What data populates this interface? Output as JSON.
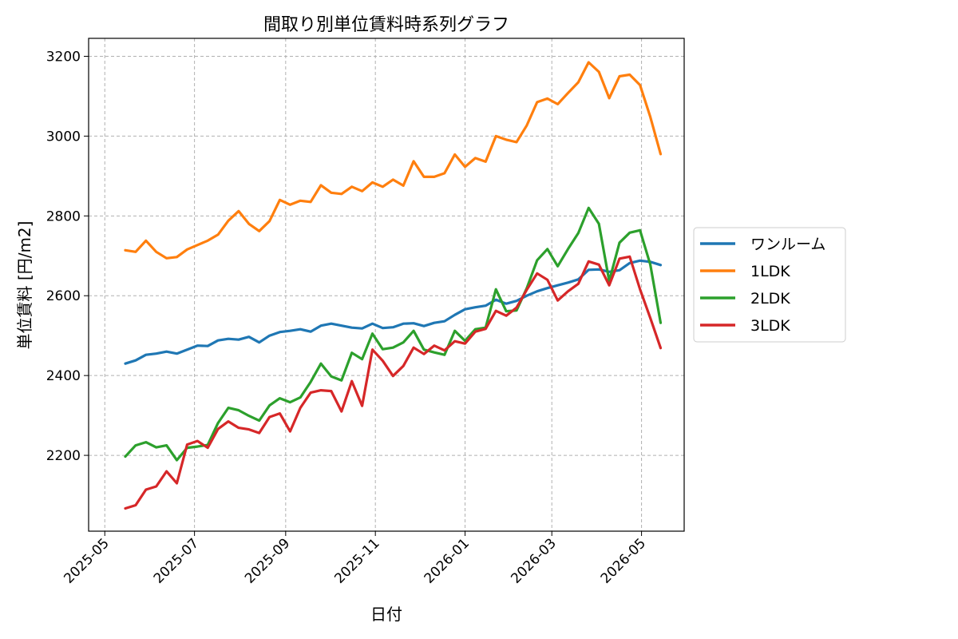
{
  "chart_data": {
    "type": "line",
    "title": "間取り別単位賃料時系列グラフ",
    "xlabel": "日付",
    "ylabel": "単位賃料 [円/m2]",
    "x_tick_labels": [
      "2025-05",
      "2025-07",
      "2025-09",
      "2025-11",
      "2026-01",
      "2026-03",
      "2026-05"
    ],
    "x_tick_dates": [
      "2025-05-01",
      "2025-07-01",
      "2025-09-01",
      "2025-11-01",
      "2026-01-01",
      "2026-03-01",
      "2026-05-01"
    ],
    "x_range": [
      "2025-04-20",
      "2026-05-30"
    ],
    "y_ticks": [
      2200,
      2400,
      2600,
      2800,
      3000,
      3200
    ],
    "y_range": [
      2010,
      3245
    ],
    "grid": true,
    "legend_position": "outside-right",
    "x": [
      "2025-05-15",
      "2025-05-22",
      "2025-05-29",
      "2025-06-05",
      "2025-06-12",
      "2025-06-19",
      "2025-06-26",
      "2025-07-03",
      "2025-07-10",
      "2025-07-17",
      "2025-07-24",
      "2025-07-31",
      "2025-08-07",
      "2025-08-14",
      "2025-08-21",
      "2025-08-28",
      "2025-09-04",
      "2025-09-11",
      "2025-09-18",
      "2025-09-25",
      "2025-10-02",
      "2025-10-09",
      "2025-10-16",
      "2025-10-23",
      "2025-10-30",
      "2025-11-06",
      "2025-11-13",
      "2025-11-20",
      "2025-11-27",
      "2025-12-04",
      "2025-12-11",
      "2025-12-18",
      "2025-12-25",
      "2026-01-01",
      "2026-01-08",
      "2026-01-15",
      "2026-01-22",
      "2026-01-29",
      "2026-02-05",
      "2026-02-12",
      "2026-02-19",
      "2026-02-26",
      "2026-03-05",
      "2026-03-12",
      "2026-03-19",
      "2026-03-26",
      "2026-04-02",
      "2026-04-09",
      "2026-04-16",
      "2026-04-23",
      "2026-04-30",
      "2026-05-07",
      "2026-05-14"
    ],
    "series": [
      {
        "name": "ワンルーム",
        "color": "#1f77b4",
        "values": [
          2430,
          2438,
          2452,
          2455,
          2460,
          2455,
          2465,
          2475,
          2474,
          2488,
          2492,
          2490,
          2497,
          2483,
          2500,
          2509,
          2512,
          2516,
          2510,
          2525,
          2530,
          2525,
          2520,
          2518,
          2530,
          2519,
          2521,
          2530,
          2531,
          2524,
          2532,
          2536,
          2552,
          2566,
          2571,
          2575,
          2590,
          2580,
          2587,
          2600,
          2611,
          2619,
          2626,
          2633,
          2641,
          2665,
          2666,
          2660,
          2664,
          2682,
          2688,
          2685,
          2677
        ]
      },
      {
        "name": "1LDK",
        "color": "#ff7f0e",
        "values": [
          2714,
          2710,
          2738,
          2710,
          2694,
          2697,
          2716,
          2727,
          2738,
          2753,
          2788,
          2812,
          2780,
          2762,
          2787,
          2840,
          2828,
          2838,
          2835,
          2877,
          2858,
          2855,
          2873,
          2862,
          2884,
          2873,
          2891,
          2876,
          2937,
          2898,
          2898,
          2907,
          2954,
          2923,
          2945,
          2936,
          3000,
          2991,
          2985,
          3027,
          3085,
          3094,
          3080,
          3108,
          3135,
          3185,
          3161,
          3095,
          3150,
          3154,
          3128,
          3048,
          2955
        ]
      },
      {
        "name": "2LDK",
        "color": "#2ca02c",
        "values": [
          2197,
          2225,
          2233,
          2220,
          2225,
          2188,
          2219,
          2222,
          2226,
          2281,
          2319,
          2313,
          2299,
          2287,
          2325,
          2343,
          2333,
          2345,
          2384,
          2430,
          2398,
          2388,
          2457,
          2441,
          2505,
          2466,
          2470,
          2483,
          2512,
          2465,
          2458,
          2452,
          2512,
          2487,
          2516,
          2520,
          2616,
          2561,
          2563,
          2619,
          2689,
          2717,
          2674,
          2717,
          2757,
          2820,
          2780,
          2637,
          2733,
          2758,
          2764,
          2678,
          2532
        ]
      },
      {
        "name": "3LDK",
        "color": "#d62728",
        "values": [
          2067,
          2075,
          2114,
          2122,
          2160,
          2130,
          2227,
          2236,
          2219,
          2266,
          2285,
          2269,
          2265,
          2256,
          2296,
          2305,
          2260,
          2319,
          2357,
          2363,
          2361,
          2310,
          2386,
          2324,
          2465,
          2437,
          2399,
          2424,
          2470,
          2454,
          2475,
          2463,
          2486,
          2480,
          2510,
          2517,
          2562,
          2550,
          2570,
          2615,
          2656,
          2640,
          2588,
          2611,
          2630,
          2686,
          2678,
          2626,
          2693,
          2698,
          2616,
          2544,
          2469
        ]
      }
    ]
  }
}
